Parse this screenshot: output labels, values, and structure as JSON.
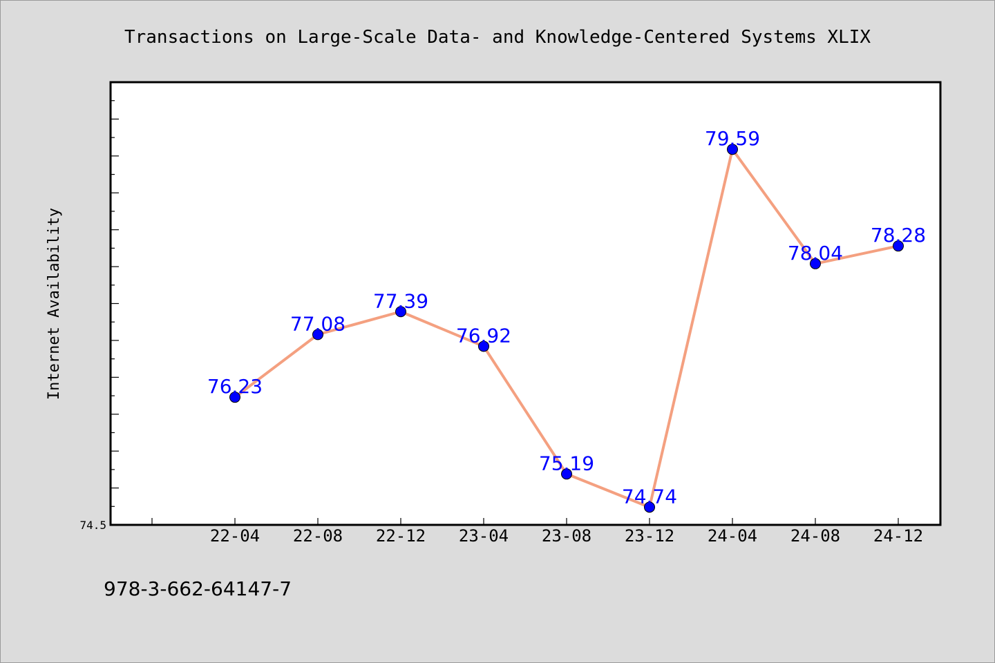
{
  "chart_data": {
    "type": "line",
    "title": "Transactions on Large-Scale Data- and Knowledge-Centered Systems XLIX",
    "ylabel": "Internet Availability",
    "xlabel": "",
    "categories": [
      "22-04",
      "22-08",
      "22-12",
      "23-04",
      "23-08",
      "23-12",
      "24-04",
      "24-08",
      "24-12"
    ],
    "series": [
      {
        "values": [
          76.23,
          77.08,
          77.39,
          76.92,
          75.19,
          74.74,
          79.59,
          78.04,
          78.28
        ],
        "data_labels": [
          "76.23",
          "77.08",
          "77.39",
          "76.92",
          "75.19",
          "74.74",
          "79.59",
          "78.04",
          "78.28"
        ]
      }
    ],
    "ylim": [
      74.5,
      80.5
    ],
    "ytick_labels": [
      "74.5"
    ],
    "grid": false,
    "legend": "none",
    "line_color": "#f4a080",
    "marker_color": "#0000ff"
  },
  "footer_text": "978-3-662-64147-7"
}
